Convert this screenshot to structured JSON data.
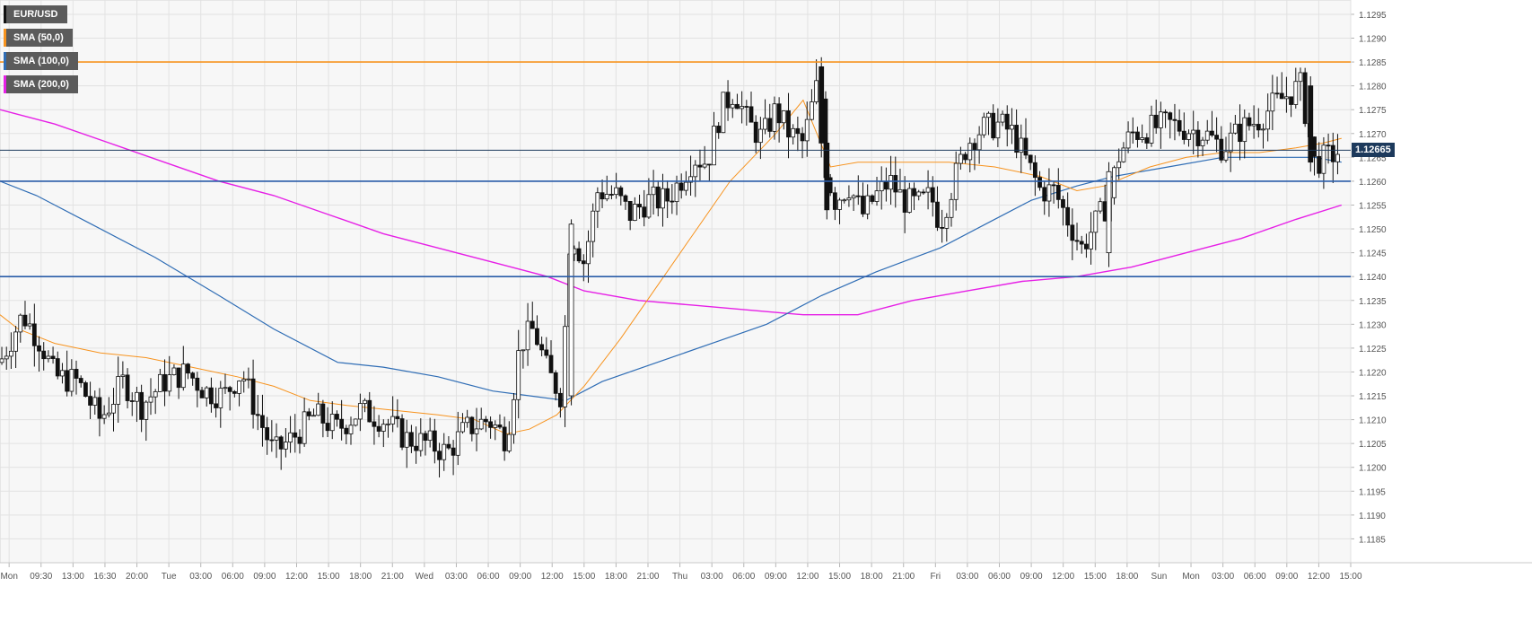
{
  "chart_data": {
    "type": "candlestick",
    "title": "",
    "legend": [
      {
        "label": "EUR/USD",
        "color": "#111111"
      },
      {
        "label": "SMA (50,0)",
        "color": "#f7931e"
      },
      {
        "label": "SMA (100,0)",
        "color": "#2f6db5"
      },
      {
        "label": "SMA (200,0)",
        "color": "#e620e6"
      }
    ],
    "legend_position": "top-left",
    "y_axis": {
      "position": "right",
      "ylim": [
        1.118,
        1.1298
      ],
      "ticks": [
        "1.1185",
        "1.1190",
        "1.1195",
        "1.1200",
        "1.1205",
        "1.1210",
        "1.1215",
        "1.1220",
        "1.1225",
        "1.1230",
        "1.1235",
        "1.1240",
        "1.1245",
        "1.1250",
        "1.1255",
        "1.1260",
        "1.1265",
        "1.1270",
        "1.1275",
        "1.1280",
        "1.1285",
        "1.1290",
        "1.1295"
      ]
    },
    "x_axis": {
      "tick_labels": [
        "Mon",
        "09:30",
        "13:00",
        "16:30",
        "20:00",
        "Tue",
        "03:00",
        "06:00",
        "09:00",
        "12:00",
        "15:00",
        "18:00",
        "21:00",
        "Wed",
        "03:00",
        "06:00",
        "09:00",
        "12:00",
        "15:00",
        "18:00",
        "21:00",
        "Thu",
        "03:00",
        "06:00",
        "09:00",
        "12:00",
        "15:00",
        "18:00",
        "21:00",
        "Fri",
        "03:00",
        "06:00",
        "09:00",
        "12:00",
        "15:00",
        "18:00",
        "Sun",
        "Mon",
        "03:00",
        "06:00",
        "09:00",
        "12:00",
        "15:00"
      ]
    },
    "grid": true,
    "current_price": {
      "label": "1.12665",
      "value": 1.12665,
      "color": "#1d3a5c"
    },
    "horizontal_lines": [
      {
        "value": 1.1285,
        "color": "#f7931e"
      },
      {
        "value": 1.126,
        "color": "#2a5ca8"
      },
      {
        "value": 1.124,
        "color": "#2a5ca8"
      },
      {
        "value": 1.12665,
        "color": "#1d3a5c"
      }
    ],
    "sma_50": [
      [
        0,
        1.1232
      ],
      [
        20,
        1.1229
      ],
      [
        60,
        1.1226
      ],
      [
        110,
        1.1224
      ],
      [
        160,
        1.1223
      ],
      [
        210,
        1.1221
      ],
      [
        260,
        1.1219
      ],
      [
        300,
        1.1217
      ],
      [
        340,
        1.1214
      ],
      [
        380,
        1.1213
      ],
      [
        430,
        1.1212
      ],
      [
        480,
        1.1211
      ],
      [
        520,
        1.121
      ],
      [
        555,
        1.1207
      ],
      [
        580,
        1.1208
      ],
      [
        610,
        1.1211
      ],
      [
        640,
        1.1217
      ],
      [
        680,
        1.1227
      ],
      [
        720,
        1.1238
      ],
      [
        760,
        1.1249
      ],
      [
        800,
        1.126
      ],
      [
        850,
        1.127
      ],
      [
        880,
        1.1277
      ],
      [
        910,
        1.1263
      ],
      [
        940,
        1.1264
      ],
      [
        990,
        1.1264
      ],
      [
        1040,
        1.1264
      ],
      [
        1090,
        1.1263
      ],
      [
        1140,
        1.1261
      ],
      [
        1180,
        1.1258
      ],
      [
        1210,
        1.1259
      ],
      [
        1260,
        1.1263
      ],
      [
        1300,
        1.1265
      ],
      [
        1340,
        1.1266
      ],
      [
        1380,
        1.1266
      ],
      [
        1420,
        1.1267
      ],
      [
        1450,
        1.1268
      ],
      [
        1470,
        1.1269
      ]
    ],
    "sma_100": [
      [
        0,
        1.126
      ],
      [
        40,
        1.1257
      ],
      [
        100,
        1.1251
      ],
      [
        170,
        1.1244
      ],
      [
        240,
        1.1236
      ],
      [
        300,
        1.1229
      ],
      [
        370,
        1.1222
      ],
      [
        420,
        1.1221
      ],
      [
        480,
        1.1219
      ],
      [
        540,
        1.1216
      ],
      [
        580,
        1.1215
      ],
      [
        620,
        1.1214
      ],
      [
        660,
        1.1218
      ],
      [
        720,
        1.1222
      ],
      [
        780,
        1.1226
      ],
      [
        840,
        1.123
      ],
      [
        900,
        1.1236
      ],
      [
        960,
        1.1241
      ],
      [
        1030,
        1.1246
      ],
      [
        1080,
        1.1251
      ],
      [
        1130,
        1.1256
      ],
      [
        1180,
        1.1259
      ],
      [
        1220,
        1.1261
      ],
      [
        1280,
        1.1263
      ],
      [
        1340,
        1.1265
      ],
      [
        1400,
        1.1265
      ],
      [
        1440,
        1.1265
      ],
      [
        1470,
        1.1264
      ]
    ],
    "sma_200": [
      [
        0,
        1.1275
      ],
      [
        60,
        1.1272
      ],
      [
        120,
        1.1268
      ],
      [
        180,
        1.1264
      ],
      [
        240,
        1.126
      ],
      [
        300,
        1.1257
      ],
      [
        360,
        1.1253
      ],
      [
        420,
        1.1249
      ],
      [
        480,
        1.1246
      ],
      [
        540,
        1.1243
      ],
      [
        600,
        1.124
      ],
      [
        640,
        1.1237
      ],
      [
        700,
        1.1235
      ],
      [
        760,
        1.1234
      ],
      [
        820,
        1.1233
      ],
      [
        880,
        1.1232
      ],
      [
        940,
        1.1232
      ],
      [
        1000,
        1.1235
      ],
      [
        1060,
        1.1237
      ],
      [
        1120,
        1.1239
      ],
      [
        1180,
        1.124
      ],
      [
        1240,
        1.1242
      ],
      [
        1300,
        1.1245
      ],
      [
        1360,
        1.1248
      ],
      [
        1420,
        1.1252
      ],
      [
        1470,
        1.1255
      ]
    ],
    "price_path": [
      [
        0,
        1.1222
      ],
      [
        25,
        1.1232
      ],
      [
        45,
        1.1226
      ],
      [
        60,
        1.1219
      ],
      [
        85,
        1.1218
      ],
      [
        110,
        1.121
      ],
      [
        135,
        1.1218
      ],
      [
        155,
        1.1213
      ],
      [
        180,
        1.1218
      ],
      [
        205,
        1.122
      ],
      [
        225,
        1.1216
      ],
      [
        245,
        1.1215
      ],
      [
        265,
        1.122
      ],
      [
        280,
        1.1212
      ],
      [
        300,
        1.1203
      ],
      [
        320,
        1.1206
      ],
      [
        345,
        1.1211
      ],
      [
        370,
        1.1208
      ],
      [
        395,
        1.1212
      ],
      [
        420,
        1.121
      ],
      [
        445,
        1.1206
      ],
      [
        470,
        1.1205
      ],
      [
        490,
        1.1203
      ],
      [
        510,
        1.1208
      ],
      [
        535,
        1.121
      ],
      [
        555,
        1.1206
      ],
      [
        570,
        1.1226
      ],
      [
        585,
        1.1229
      ],
      [
        600,
        1.122
      ],
      [
        615,
        1.1215
      ],
      [
        625,
        1.125
      ],
      [
        640,
        1.1243
      ],
      [
        655,
        1.1258
      ],
      [
        675,
        1.1257
      ],
      [
        690,
        1.1253
      ],
      [
        710,
        1.1256
      ],
      [
        730,
        1.1256
      ],
      [
        745,
        1.126
      ],
      [
        760,
        1.1265
      ],
      [
        775,
        1.1264
      ],
      [
        790,
        1.1275
      ],
      [
        805,
        1.1279
      ],
      [
        820,
        1.1272
      ],
      [
        835,
        1.1269
      ],
      [
        850,
        1.1275
      ],
      [
        865,
        1.127
      ],
      [
        880,
        1.1268
      ],
      [
        890,
        1.1276
      ],
      [
        898,
        1.1282
      ],
      [
        905,
        1.1262
      ],
      [
        915,
        1.1256
      ],
      [
        930,
        1.1259
      ],
      [
        945,
        1.1253
      ],
      [
        960,
        1.1257
      ],
      [
        975,
        1.126
      ],
      [
        990,
        1.1256
      ],
      [
        1005,
        1.1255
      ],
      [
        1020,
        1.1257
      ],
      [
        1030,
        1.1251
      ],
      [
        1045,
        1.126
      ],
      [
        1060,
        1.1268
      ],
      [
        1075,
        1.1271
      ],
      [
        1095,
        1.1272
      ],
      [
        1110,
        1.127
      ],
      [
        1125,
        1.1264
      ],
      [
        1140,
        1.1258
      ],
      [
        1155,
        1.1258
      ],
      [
        1170,
        1.1252
      ],
      [
        1185,
        1.1246
      ],
      [
        1200,
        1.1251
      ],
      [
        1215,
        1.1256
      ],
      [
        1225,
        1.1265
      ],
      [
        1240,
        1.127
      ],
      [
        1260,
        1.1271
      ],
      [
        1280,
        1.1272
      ],
      [
        1300,
        1.1271
      ],
      [
        1320,
        1.127
      ],
      [
        1340,
        1.1267
      ],
      [
        1360,
        1.1271
      ],
      [
        1380,
        1.1273
      ],
      [
        1395,
        1.1276
      ],
      [
        1410,
        1.1278
      ],
      [
        1425,
        1.128
      ],
      [
        1440,
        1.1264
      ],
      [
        1455,
        1.1265
      ],
      [
        1470,
        1.12665
      ]
    ],
    "big_candles": [
      {
        "x": 626,
        "open": 1.1215,
        "close": 1.1251,
        "high": 1.1252,
        "low": 1.1213
      },
      {
        "x": 900,
        "open": 1.1284,
        "close": 1.1268,
        "high": 1.1286,
        "low": 1.1265
      },
      {
        "x": 906,
        "open": 1.1268,
        "close": 1.1254,
        "high": 1.1269,
        "low": 1.1252
      },
      {
        "x": 1436,
        "open": 1.128,
        "close": 1.1264,
        "high": 1.1282,
        "low": 1.1262
      },
      {
        "x": 1215,
        "open": 1.1245,
        "close": 1.1262,
        "high": 1.1264,
        "low": 1.1242
      }
    ]
  }
}
